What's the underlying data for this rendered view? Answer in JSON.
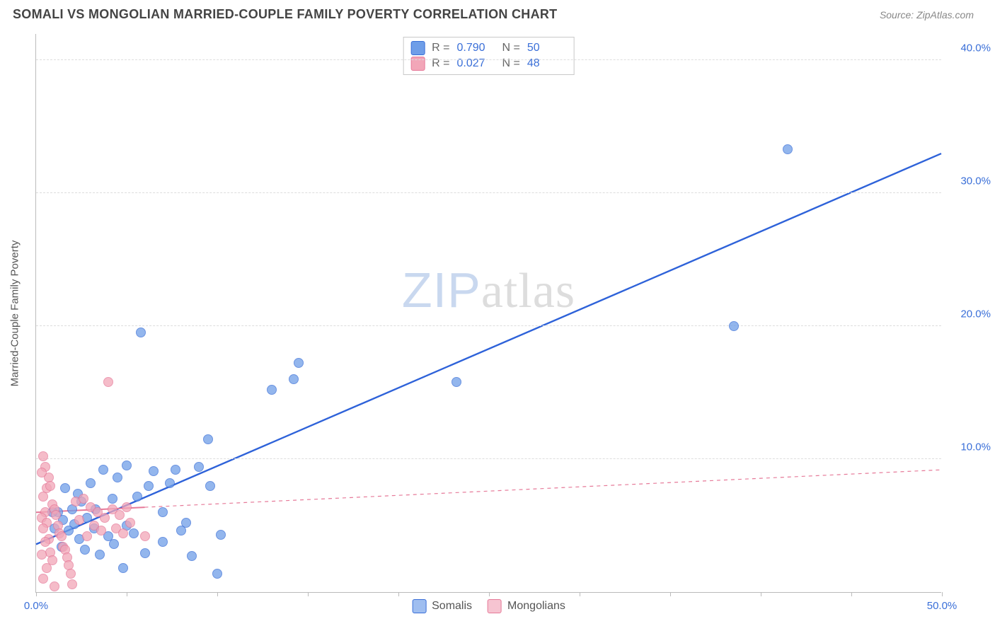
{
  "header": {
    "title": "SOMALI VS MONGOLIAN MARRIED-COUPLE FAMILY POVERTY CORRELATION CHART",
    "source_label": "Source: ZipAtlas.com"
  },
  "watermark": {
    "zip": "ZIP",
    "atlas": "atlas"
  },
  "chart": {
    "type": "scatter",
    "y_axis_label": "Married-Couple Family Poverty",
    "background_color": "#ffffff",
    "grid_color": "#dddddd",
    "axis_color": "#bbbbbb",
    "xlim": [
      0,
      50
    ],
    "ylim": [
      0,
      42
    ],
    "x_ticks": [
      0,
      5,
      10,
      15,
      20,
      25,
      30,
      35,
      40,
      45,
      50
    ],
    "x_tick_labels": {
      "0": "0.0%",
      "50": "50.0%"
    },
    "x_tick_label_colors": {
      "0": "#3a6fd8",
      "50": "#3a6fd8"
    },
    "y_ticks": [
      10,
      20,
      30,
      40
    ],
    "y_tick_labels": {
      "10": "10.0%",
      "20": "20.0%",
      "30": "30.0%",
      "40": "40.0%"
    },
    "y_tick_label_color": "#3a6fd8",
    "marker_radius": 7,
    "marker_border_width": 1.2,
    "marker_fill_opacity": 0.35,
    "series": [
      {
        "name": "Somalis",
        "color_fill": "#6f9ee8",
        "color_stroke": "#3a6fd8",
        "r_value": "0.790",
        "n_value": "50",
        "trend": {
          "x1": 0,
          "y1": 3.6,
          "x2": 50,
          "y2": 33.0,
          "stroke": "#2e62d9",
          "width": 2.4,
          "dash": "none"
        },
        "points": [
          [
            41.5,
            33.3
          ],
          [
            38.5,
            20.0
          ],
          [
            23.2,
            15.8
          ],
          [
            14.5,
            17.2
          ],
          [
            14.2,
            16.0
          ],
          [
            13.0,
            15.2
          ],
          [
            5.8,
            19.5
          ],
          [
            9.5,
            11.5
          ],
          [
            10.2,
            4.3
          ],
          [
            10.0,
            1.4
          ],
          [
            9.6,
            8.0
          ],
          [
            9.0,
            9.4
          ],
          [
            8.3,
            5.2
          ],
          [
            8.0,
            4.6
          ],
          [
            8.6,
            2.7
          ],
          [
            7.7,
            9.2
          ],
          [
            7.4,
            8.2
          ],
          [
            7.0,
            3.8
          ],
          [
            7.0,
            6.0
          ],
          [
            6.5,
            9.1
          ],
          [
            6.2,
            8.0
          ],
          [
            6.0,
            2.9
          ],
          [
            5.6,
            7.2
          ],
          [
            5.4,
            4.4
          ],
          [
            5.0,
            9.5
          ],
          [
            5.0,
            5.0
          ],
          [
            4.8,
            1.8
          ],
          [
            4.5,
            8.6
          ],
          [
            4.3,
            3.6
          ],
          [
            4.2,
            7.0
          ],
          [
            4.0,
            4.2
          ],
          [
            3.7,
            9.2
          ],
          [
            3.5,
            2.8
          ],
          [
            3.3,
            6.2
          ],
          [
            3.2,
            4.8
          ],
          [
            3.0,
            8.2
          ],
          [
            2.8,
            5.6
          ],
          [
            2.7,
            3.2
          ],
          [
            2.5,
            6.8
          ],
          [
            2.4,
            4.0
          ],
          [
            2.3,
            7.4
          ],
          [
            2.1,
            5.1
          ],
          [
            2.0,
            6.2
          ],
          [
            1.8,
            4.6
          ],
          [
            1.6,
            7.8
          ],
          [
            1.5,
            5.4
          ],
          [
            1.4,
            3.4
          ],
          [
            1.2,
            6.0
          ],
          [
            1.0,
            4.8
          ],
          [
            0.9,
            6.0
          ]
        ]
      },
      {
        "name": "Mongolians",
        "color_fill": "#f2a6b8",
        "color_stroke": "#e67a99",
        "r_value": "0.027",
        "n_value": "48",
        "trend": {
          "x1": 0,
          "y1": 6.0,
          "x2": 50,
          "y2": 9.2,
          "stroke": "#e67a99",
          "width": 1.2,
          "dash": "5,5"
        },
        "trend_solid_until_x": 6,
        "points": [
          [
            4.0,
            15.8
          ],
          [
            0.4,
            10.2
          ],
          [
            0.5,
            9.4
          ],
          [
            0.7,
            8.6
          ],
          [
            0.3,
            9.0
          ],
          [
            0.6,
            7.8
          ],
          [
            0.8,
            8.0
          ],
          [
            0.4,
            7.2
          ],
          [
            0.9,
            6.6
          ],
          [
            0.5,
            6.0
          ],
          [
            1.0,
            6.2
          ],
          [
            0.3,
            5.6
          ],
          [
            1.1,
            5.8
          ],
          [
            0.6,
            5.2
          ],
          [
            1.2,
            5.0
          ],
          [
            0.4,
            4.8
          ],
          [
            1.3,
            4.4
          ],
          [
            0.7,
            4.0
          ],
          [
            1.4,
            4.2
          ],
          [
            0.5,
            3.8
          ],
          [
            1.5,
            3.4
          ],
          [
            0.8,
            3.0
          ],
          [
            1.6,
            3.2
          ],
          [
            0.3,
            2.8
          ],
          [
            1.7,
            2.6
          ],
          [
            0.9,
            2.4
          ],
          [
            1.8,
            2.0
          ],
          [
            0.6,
            1.8
          ],
          [
            1.9,
            1.4
          ],
          [
            0.4,
            1.0
          ],
          [
            2.0,
            0.6
          ],
          [
            1.0,
            0.4
          ],
          [
            2.2,
            6.8
          ],
          [
            2.4,
            5.4
          ],
          [
            2.6,
            7.0
          ],
          [
            2.8,
            4.2
          ],
          [
            3.0,
            6.4
          ],
          [
            3.2,
            5.0
          ],
          [
            3.4,
            6.0
          ],
          [
            3.6,
            4.6
          ],
          [
            3.8,
            5.6
          ],
          [
            4.2,
            6.2
          ],
          [
            4.4,
            4.8
          ],
          [
            4.6,
            5.8
          ],
          [
            4.8,
            4.4
          ],
          [
            5.0,
            6.4
          ],
          [
            5.2,
            5.2
          ],
          [
            6.0,
            4.2
          ]
        ]
      }
    ]
  },
  "legend_top": {
    "r_label": "R =",
    "n_label": "N =",
    "value_color": "#3a6fd8",
    "label_color": "#666666",
    "border_color": "#c8c8c8"
  },
  "legend_bottom": {
    "items": [
      {
        "label": "Somalis",
        "fill": "#9fbef0",
        "stroke": "#3a6fd8"
      },
      {
        "label": "Mongolians",
        "fill": "#f6c4d1",
        "stroke": "#e67a99"
      }
    ]
  }
}
